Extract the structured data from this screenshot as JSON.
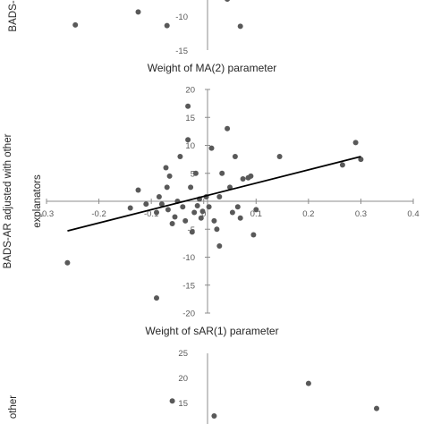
{
  "chart_data": [
    {
      "type": "scatter",
      "partial": "top",
      "title": "Weight of MA(2) parameter",
      "ylabel": "BADS-",
      "y_ticks": [
        "-10",
        "-15"
      ],
      "points": [
        {
          "x": -0.245,
          "y": -11.3
        },
        {
          "x": -0.125,
          "y": -9.4
        },
        {
          "x": -0.07,
          "y": -11.4
        },
        {
          "x": 0.045,
          "y": -7.5
        },
        {
          "x": 0.07,
          "y": -11.5
        }
      ]
    },
    {
      "type": "scatter",
      "title": "Weight of sAR(1) parameter",
      "ylabel": [
        "BADS-AR adjusted with other",
        "explanators"
      ],
      "xlim": [
        -0.3,
        0.4
      ],
      "ylim": [
        -20,
        20
      ],
      "x_ticks": [
        "-0.3",
        "-0.2",
        "-0.1",
        "0",
        "0.1",
        "0.2",
        "0.3",
        "0.4"
      ],
      "y_ticks": [
        "20",
        "15",
        "10",
        "5",
        "-5",
        "-10",
        "-15",
        "-20"
      ],
      "trendline": {
        "x": [
          -0.26,
          0.3
        ],
        "y": [
          -5.3,
          8.0
        ]
      },
      "points": [
        {
          "x": -0.26,
          "y": -11.0
        },
        {
          "x": -0.14,
          "y": -1.2
        },
        {
          "x": -0.125,
          "y": 2.0
        },
        {
          "x": -0.11,
          "y": -0.5
        },
        {
          "x": -0.09,
          "y": -2.0
        },
        {
          "x": -0.09,
          "y": -17.3
        },
        {
          "x": -0.085,
          "y": 0.8
        },
        {
          "x": -0.08,
          "y": -0.5
        },
        {
          "x": -0.072,
          "y": 6.0
        },
        {
          "x": -0.07,
          "y": 2.5
        },
        {
          "x": -0.068,
          "y": -1.5
        },
        {
          "x": -0.065,
          "y": 4.5
        },
        {
          "x": -0.06,
          "y": -4.0
        },
        {
          "x": -0.055,
          "y": -2.8
        },
        {
          "x": -0.05,
          "y": 0.0
        },
        {
          "x": -0.045,
          "y": 8.0
        },
        {
          "x": -0.04,
          "y": -1.0
        },
        {
          "x": -0.035,
          "y": -3.5
        },
        {
          "x": -0.03,
          "y": 11.0
        },
        {
          "x": -0.03,
          "y": 17.0
        },
        {
          "x": -0.025,
          "y": 2.5
        },
        {
          "x": -0.022,
          "y": -5.5
        },
        {
          "x": -0.018,
          "y": -2.0
        },
        {
          "x": -0.015,
          "y": 5.0
        },
        {
          "x": -0.012,
          "y": -0.8
        },
        {
          "x": -0.008,
          "y": 0.4
        },
        {
          "x": -0.005,
          "y": -3.0
        },
        {
          "x": -0.002,
          "y": -1.8
        },
        {
          "x": 0.005,
          "y": 0.8
        },
        {
          "x": 0.01,
          "y": -1.0
        },
        {
          "x": 0.015,
          "y": 9.5
        },
        {
          "x": 0.02,
          "y": -3.5
        },
        {
          "x": 0.025,
          "y": -5.0
        },
        {
          "x": 0.03,
          "y": 0.8
        },
        {
          "x": 0.035,
          "y": 5.0
        },
        {
          "x": 0.045,
          "y": 13.0
        },
        {
          "x": 0.05,
          "y": 2.5
        },
        {
          "x": 0.055,
          "y": -2.0
        },
        {
          "x": 0.06,
          "y": 8.0
        },
        {
          "x": 0.065,
          "y": -1.0
        },
        {
          "x": 0.07,
          "y": -3.0
        },
        {
          "x": 0.075,
          "y": 4.0
        },
        {
          "x": 0.085,
          "y": 4.2
        },
        {
          "x": 0.09,
          "y": 4.5
        },
        {
          "x": 0.095,
          "y": -6.0
        },
        {
          "x": 0.1,
          "y": -1.5
        },
        {
          "x": 0.145,
          "y": 8.0
        },
        {
          "x": 0.265,
          "y": 6.5
        },
        {
          "x": 0.29,
          "y": 10.5
        },
        {
          "x": 0.3,
          "y": 7.5
        },
        {
          "x": 0.03,
          "y": -8.0
        }
      ]
    },
    {
      "type": "scatter",
      "partial": "bottom",
      "ylabel": "other",
      "y_ticks": [
        "25",
        "20",
        "15"
      ],
      "points": [
        {
          "x": -0.06,
          "y": 15.5
        },
        {
          "x": 0.02,
          "y": 12.5
        },
        {
          "x": 0.2,
          "y": 19.0
        },
        {
          "x": 0.33,
          "y": 14.0
        }
      ]
    }
  ]
}
